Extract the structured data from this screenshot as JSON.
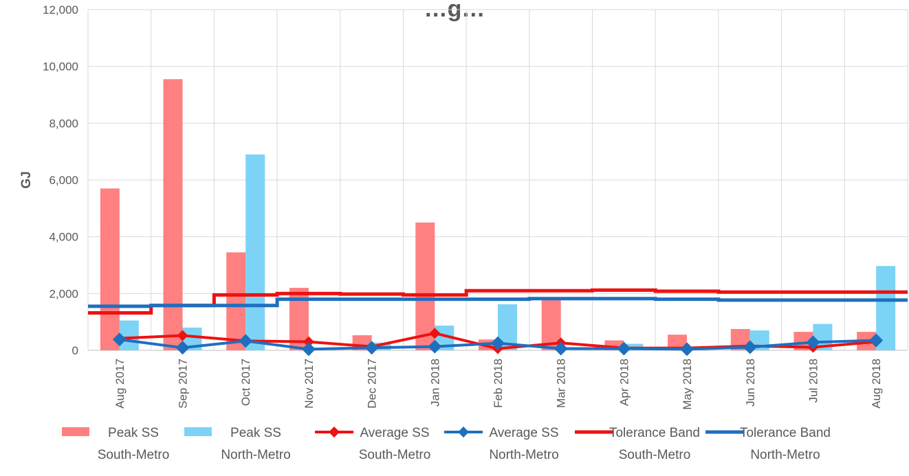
{
  "chart_data": {
    "type": "bar",
    "title": "…g…",
    "xlabel": "",
    "ylabel": "GJ",
    "ylim": [
      0,
      12000
    ],
    "yticks": [
      0,
      2000,
      4000,
      6000,
      8000,
      10000,
      12000
    ],
    "ytick_labels": [
      "0",
      "2,000",
      "4,000",
      "6,000",
      "8,000",
      "10,000",
      "12,000"
    ],
    "grid": true,
    "legend_position": "bottom",
    "categories": [
      "Aug 2017",
      "Sep 2017",
      "Oct 2017",
      "Nov 2017",
      "Dec 2017",
      "Jan 2018",
      "Feb 2018",
      "Mar 2018",
      "Apr 2018",
      "May 2018",
      "Jun 2018",
      "Jul 2018",
      "Aug 2018"
    ],
    "series": [
      {
        "name": "Peak SS South-Metro",
        "legend_lines": [
          "Peak SS",
          "South-Metro"
        ],
        "kind": "bar",
        "color": "#ff8080",
        "values": [
          5700,
          9550,
          3450,
          2200,
          530,
          4500,
          380,
          1800,
          350,
          550,
          750,
          650,
          650
        ]
      },
      {
        "name": "Peak SS North-Metro",
        "legend_lines": [
          "Peak SS",
          "North-Metro"
        ],
        "kind": "bar",
        "color": "#7dd3f5",
        "values": [
          1050,
          800,
          6900,
          50,
          270,
          870,
          1620,
          50,
          230,
          30,
          700,
          930,
          2970
        ]
      },
      {
        "name": "Average SS South-Metro",
        "legend_lines": [
          "Average SS",
          "South-Metro"
        ],
        "kind": "line-marker",
        "color": "#ee1111",
        "values": [
          420,
          520,
          330,
          300,
          130,
          600,
          60,
          260,
          80,
          80,
          150,
          110,
          300
        ]
      },
      {
        "name": "Average SS North-Metro",
        "legend_lines": [
          "Average SS",
          "North-Metro"
        ],
        "kind": "line-marker",
        "color": "#1f6fbf",
        "values": [
          380,
          90,
          330,
          40,
          90,
          130,
          250,
          60,
          60,
          40,
          110,
          280,
          350
        ]
      },
      {
        "name": "Tolerance Band South-Metro",
        "legend_lines": [
          "Tolerance Band",
          "South-Metro"
        ],
        "kind": "step",
        "color": "#ee1111",
        "values": [
          1320,
          1580,
          1950,
          2000,
          1980,
          1950,
          2100,
          2100,
          2120,
          2080,
          2050,
          2050,
          2050
        ]
      },
      {
        "name": "Tolerance Band North-Metro",
        "legend_lines": [
          "Tolerance Band",
          "North-Metro"
        ],
        "kind": "step",
        "color": "#1f6fbf",
        "values": [
          1550,
          1580,
          1580,
          1800,
          1800,
          1800,
          1800,
          1820,
          1820,
          1800,
          1770,
          1770,
          1770
        ]
      }
    ]
  }
}
